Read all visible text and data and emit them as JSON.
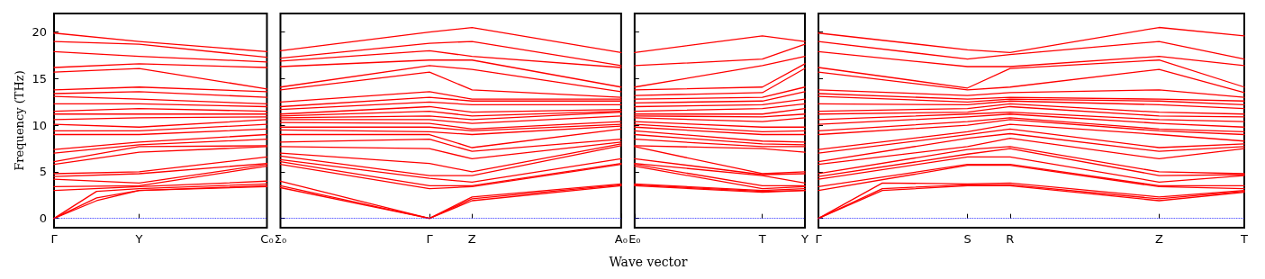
{
  "chart_data": [
    {
      "type": "line",
      "ylabel": "Frequency (THz)",
      "categories": [
        "Γ",
        null,
        null,
        null,
        "Y",
        null,
        null,
        null,
        null,
        null,
        "C₀"
      ],
      "ylim": [
        -1,
        22
      ],
      "yticks": [
        0,
        5,
        10,
        15,
        20
      ],
      "line_style": "solid",
      "marker": "none",
      "ref_lines": [
        {
          "axis": "y",
          "value": 0,
          "label": null,
          "color": "#0000ff",
          "line_style": "dotted"
        }
      ],
      "series": [
        {
          "color": "#ff0000",
          "values": [
            0,
            null,
            2.2,
            null,
            3.0,
            null,
            null,
            null,
            null,
            null,
            3.4
          ]
        },
        {
          "color": "#ff0000",
          "values": [
            0,
            null,
            1.9,
            null,
            3.0,
            null,
            null,
            null,
            null,
            null,
            3.5
          ]
        },
        {
          "color": "#ff0000",
          "values": [
            0,
            null,
            2.9,
            null,
            3.2,
            null,
            null,
            null,
            null,
            null,
            3.7
          ]
        },
        {
          "color": "#ff0000",
          "values": [
            3.0,
            null,
            null,
            null,
            3.4,
            null,
            null,
            null,
            null,
            null,
            4.0
          ]
        },
        {
          "color": "#ff0000",
          "values": [
            3.4,
            null,
            null,
            null,
            3.5,
            null,
            null,
            null,
            null,
            null,
            5.6
          ]
        },
        {
          "color": "#ff0000",
          "values": [
            4.2,
            null,
            null,
            null,
            3.8,
            null,
            null,
            null,
            null,
            null,
            5.8
          ]
        },
        {
          "color": "#ff0000",
          "values": [
            4.5,
            null,
            null,
            null,
            4.8,
            null,
            null,
            null,
            null,
            null,
            5.9
          ]
        },
        {
          "color": "#ff0000",
          "values": [
            4.8,
            null,
            null,
            null,
            5.0,
            null,
            null,
            null,
            null,
            null,
            6.6
          ]
        },
        {
          "color": "#ff0000",
          "values": [
            5.8,
            null,
            null,
            null,
            7.1,
            null,
            null,
            null,
            null,
            null,
            7.7
          ]
        },
        {
          "color": "#ff0000",
          "values": [
            6.1,
            null,
            null,
            null,
            7.7,
            null,
            null,
            null,
            null,
            null,
            7.8
          ]
        },
        {
          "color": "#ff0000",
          "values": [
            7.0,
            null,
            null,
            null,
            7.9,
            null,
            null,
            null,
            null,
            null,
            8.5
          ]
        },
        {
          "color": "#ff0000",
          "values": [
            7.4,
            null,
            null,
            null,
            8.2,
            null,
            null,
            null,
            null,
            null,
            9.0
          ]
        },
        {
          "color": "#ff0000",
          "values": [
            9.0,
            null,
            null,
            null,
            9.0,
            null,
            null,
            null,
            null,
            null,
            9.6
          ]
        },
        {
          "color": "#ff0000",
          "values": [
            9.4,
            null,
            null,
            null,
            9.4,
            null,
            null,
            null,
            null,
            null,
            10.1
          ]
        },
        {
          "color": "#ff0000",
          "values": [
            10.1,
            null,
            null,
            null,
            9.8,
            null,
            null,
            null,
            null,
            null,
            10.6
          ]
        },
        {
          "color": "#ff0000",
          "values": [
            10.6,
            null,
            null,
            null,
            10.8,
            null,
            null,
            null,
            null,
            null,
            10.9
          ]
        },
        {
          "color": "#ff0000",
          "values": [
            11.2,
            null,
            null,
            null,
            11.2,
            null,
            null,
            null,
            null,
            null,
            11.2
          ]
        },
        {
          "color": "#ff0000",
          "values": [
            11.5,
            null,
            null,
            null,
            11.8,
            null,
            null,
            null,
            null,
            null,
            11.5
          ]
        },
        {
          "color": "#ff0000",
          "values": [
            12.3,
            null,
            null,
            null,
            12.3,
            null,
            null,
            null,
            null,
            null,
            12.0
          ]
        },
        {
          "color": "#ff0000",
          "values": [
            13.1,
            null,
            null,
            null,
            12.8,
            null,
            null,
            null,
            null,
            null,
            12.3
          ]
        },
        {
          "color": "#ff0000",
          "values": [
            13.4,
            null,
            null,
            null,
            13.6,
            null,
            null,
            null,
            null,
            null,
            13.0
          ]
        },
        {
          "color": "#ff0000",
          "values": [
            13.8,
            null,
            null,
            null,
            14.1,
            null,
            null,
            null,
            null,
            null,
            13.6
          ]
        },
        {
          "color": "#ff0000",
          "values": [
            15.7,
            null,
            null,
            null,
            16.1,
            null,
            null,
            null,
            null,
            null,
            13.9
          ]
        },
        {
          "color": "#ff0000",
          "values": [
            16.2,
            null,
            null,
            null,
            16.6,
            null,
            null,
            null,
            null,
            null,
            16.2
          ]
        },
        {
          "color": "#ff0000",
          "values": [
            17.9,
            null,
            null,
            null,
            17.4,
            null,
            null,
            null,
            null,
            null,
            16.8
          ]
        },
        {
          "color": "#ff0000",
          "values": [
            19.0,
            null,
            null,
            null,
            18.7,
            null,
            null,
            null,
            null,
            null,
            17.3
          ]
        },
        {
          "color": "#ff0000",
          "values": [
            19.9,
            null,
            null,
            null,
            19.0,
            null,
            null,
            null,
            null,
            null,
            17.9
          ]
        }
      ]
    },
    {
      "type": "line",
      "categories": [
        "Σ₀",
        null,
        null,
        null,
        null,
        null,
        null,
        "Γ",
        null,
        "Z",
        null,
        null,
        null,
        null,
        null,
        null,
        "A₀"
      ],
      "ylim": [
        -1,
        22
      ],
      "yticks": [
        0,
        5,
        10,
        15,
        20
      ],
      "tick_labels": "x",
      "line_style": "solid",
      "marker": "none",
      "ref_lines": [
        {
          "axis": "y",
          "value": 0,
          "label": null,
          "color": "#0000ff",
          "line_style": "dotted"
        }
      ],
      "series": [
        {
          "color": "#ff0000",
          "values": [
            3.3,
            null,
            null,
            null,
            null,
            null,
            null,
            0,
            null,
            1.9,
            null,
            null,
            null,
            null,
            null,
            null,
            3.5
          ]
        },
        {
          "color": "#ff0000",
          "values": [
            3.5,
            null,
            null,
            null,
            null,
            null,
            null,
            0,
            null,
            2.1,
            null,
            null,
            null,
            null,
            null,
            null,
            3.6
          ]
        },
        {
          "color": "#ff0000",
          "values": [
            4.0,
            null,
            null,
            null,
            null,
            null,
            null,
            0,
            null,
            2.3,
            null,
            null,
            null,
            null,
            null,
            null,
            3.7
          ]
        },
        {
          "color": "#ff0000",
          "values": [
            5.8,
            null,
            null,
            null,
            null,
            null,
            null,
            3.2,
            null,
            3.4,
            null,
            null,
            null,
            null,
            null,
            null,
            5.8
          ]
        },
        {
          "color": "#ff0000",
          "values": [
            6.1,
            null,
            null,
            null,
            null,
            null,
            null,
            3.5,
            null,
            3.5,
            null,
            null,
            null,
            null,
            null,
            null,
            5.9
          ]
        },
        {
          "color": "#ff0000",
          "values": [
            6.3,
            null,
            null,
            null,
            null,
            null,
            null,
            4.3,
            null,
            3.9,
            null,
            null,
            null,
            null,
            null,
            null,
            6.4
          ]
        },
        {
          "color": "#ff0000",
          "values": [
            6.7,
            null,
            null,
            null,
            null,
            null,
            null,
            4.6,
            null,
            4.6,
            null,
            null,
            null,
            null,
            null,
            null,
            7.8
          ]
        },
        {
          "color": "#ff0000",
          "values": [
            7.0,
            null,
            null,
            null,
            null,
            null,
            null,
            5.9,
            null,
            5.0,
            null,
            null,
            null,
            null,
            null,
            null,
            8.0
          ]
        },
        {
          "color": "#ff0000",
          "values": [
            7.7,
            null,
            null,
            null,
            null,
            null,
            null,
            7.5,
            null,
            6.4,
            null,
            null,
            null,
            null,
            null,
            null,
            8.2
          ]
        },
        {
          "color": "#ff0000",
          "values": [
            8.2,
            null,
            null,
            null,
            null,
            null,
            null,
            8.5,
            null,
            7.2,
            null,
            null,
            null,
            null,
            null,
            null,
            8.5
          ]
        },
        {
          "color": "#ff0000",
          "values": [
            9.0,
            null,
            null,
            null,
            null,
            null,
            null,
            9.0,
            null,
            7.6,
            null,
            null,
            null,
            null,
            null,
            null,
            9.6
          ]
        },
        {
          "color": "#ff0000",
          "values": [
            9.5,
            null,
            null,
            null,
            null,
            null,
            null,
            9.3,
            null,
            9.0,
            null,
            null,
            null,
            null,
            null,
            null,
            9.9
          ]
        },
        {
          "color": "#ff0000",
          "values": [
            9.8,
            null,
            null,
            null,
            null,
            null,
            null,
            9.8,
            null,
            9.4,
            null,
            null,
            null,
            null,
            null,
            null,
            10.1
          ]
        },
        {
          "color": "#ff0000",
          "values": [
            10.3,
            null,
            null,
            null,
            null,
            null,
            null,
            10.2,
            null,
            9.6,
            null,
            null,
            null,
            null,
            null,
            null,
            10.4
          ]
        },
        {
          "color": "#ff0000",
          "values": [
            10.6,
            null,
            null,
            null,
            null,
            null,
            null,
            10.6,
            null,
            10.2,
            null,
            null,
            null,
            null,
            null,
            null,
            11.0
          ]
        },
        {
          "color": "#ff0000",
          "values": [
            10.8,
            null,
            null,
            null,
            null,
            null,
            null,
            11.0,
            null,
            10.6,
            null,
            null,
            null,
            null,
            null,
            null,
            11.4
          ]
        },
        {
          "color": "#ff0000",
          "values": [
            11.0,
            null,
            null,
            null,
            null,
            null,
            null,
            11.5,
            null,
            11.0,
            null,
            null,
            null,
            null,
            null,
            null,
            11.5
          ]
        },
        {
          "color": "#ff0000",
          "values": [
            11.2,
            null,
            null,
            null,
            null,
            null,
            null,
            12.0,
            null,
            11.4,
            null,
            null,
            null,
            null,
            null,
            null,
            11.7
          ]
        },
        {
          "color": "#ff0000",
          "values": [
            11.7,
            null,
            null,
            null,
            null,
            null,
            null,
            12.5,
            null,
            12.2,
            null,
            null,
            null,
            null,
            null,
            null,
            12.2
          ]
        },
        {
          "color": "#ff0000",
          "values": [
            12.0,
            null,
            null,
            null,
            null,
            null,
            null,
            13.0,
            null,
            12.6,
            null,
            null,
            null,
            null,
            null,
            null,
            12.6
          ]
        },
        {
          "color": "#ff0000",
          "values": [
            12.5,
            null,
            null,
            null,
            null,
            null,
            null,
            13.6,
            null,
            12.8,
            null,
            null,
            null,
            null,
            null,
            null,
            12.8
          ]
        },
        {
          "color": "#ff0000",
          "values": [
            13.8,
            null,
            null,
            null,
            null,
            null,
            null,
            15.7,
            null,
            13.8,
            null,
            null,
            null,
            null,
            null,
            null,
            13.0
          ]
        },
        {
          "color": "#ff0000",
          "values": [
            14.1,
            null,
            null,
            null,
            null,
            null,
            null,
            16.4,
            null,
            16.0,
            null,
            null,
            null,
            null,
            null,
            null,
            13.6
          ]
        },
        {
          "color": "#ff0000",
          "values": [
            16.3,
            null,
            null,
            null,
            null,
            null,
            null,
            17.0,
            null,
            17.0,
            null,
            null,
            null,
            null,
            null,
            null,
            14.1
          ]
        },
        {
          "color": "#ff0000",
          "values": [
            16.9,
            null,
            null,
            null,
            null,
            null,
            null,
            18.0,
            null,
            17.4,
            null,
            null,
            null,
            null,
            null,
            null,
            16.2
          ]
        },
        {
          "color": "#ff0000",
          "values": [
            17.2,
            null,
            null,
            null,
            null,
            null,
            null,
            18.8,
            null,
            19.0,
            null,
            null,
            null,
            null,
            null,
            null,
            16.4
          ]
        },
        {
          "color": "#ff0000",
          "values": [
            18.0,
            null,
            null,
            null,
            null,
            null,
            null,
            20.0,
            null,
            20.5,
            null,
            null,
            null,
            null,
            null,
            null,
            17.8
          ]
        }
      ]
    },
    {
      "type": "line",
      "xlabel": "Wave vector",
      "categories": [
        "E₀",
        null,
        null,
        null,
        null,
        null,
        "T",
        null,
        "Y"
      ],
      "ylim": [
        -1,
        22
      ],
      "yticks": [
        0,
        5,
        10,
        15,
        20
      ],
      "tick_labels": "x",
      "line_style": "solid",
      "marker": "none",
      "ref_lines": [
        {
          "axis": "y",
          "value": 0,
          "label": null,
          "color": "#0000ff",
          "line_style": "dotted"
        }
      ],
      "series": [
        {
          "color": "#ff0000",
          "values": [
            3.5,
            null,
            null,
            null,
            null,
            null,
            2.8,
            null,
            3.0
          ]
        },
        {
          "color": "#ff0000",
          "values": [
            3.6,
            null,
            null,
            null,
            null,
            null,
            2.9,
            null,
            3.0
          ]
        },
        {
          "color": "#ff0000",
          "values": [
            3.7,
            null,
            null,
            null,
            null,
            null,
            3.0,
            null,
            3.2
          ]
        },
        {
          "color": "#ff0000",
          "values": [
            5.6,
            null,
            null,
            null,
            null,
            null,
            3.2,
            null,
            3.4
          ]
        },
        {
          "color": "#ff0000",
          "values": [
            5.8,
            null,
            null,
            null,
            null,
            null,
            3.5,
            null,
            3.5
          ]
        },
        {
          "color": "#ff0000",
          "values": [
            5.9,
            null,
            null,
            null,
            null,
            null,
            4.6,
            null,
            3.8
          ]
        },
        {
          "color": "#ff0000",
          "values": [
            6.4,
            null,
            null,
            null,
            null,
            null,
            4.7,
            null,
            4.8
          ]
        },
        {
          "color": "#ff0000",
          "values": [
            7.7,
            null,
            null,
            null,
            null,
            null,
            4.8,
            null,
            5.0
          ]
        },
        {
          "color": "#ff0000",
          "values": [
            7.8,
            null,
            null,
            null,
            null,
            null,
            7.5,
            null,
            7.1
          ]
        },
        {
          "color": "#ff0000",
          "values": [
            8.5,
            null,
            null,
            null,
            null,
            null,
            7.7,
            null,
            7.7
          ]
        },
        {
          "color": "#ff0000",
          "values": [
            9.0,
            null,
            null,
            null,
            null,
            null,
            8.0,
            null,
            7.9
          ]
        },
        {
          "color": "#ff0000",
          "values": [
            9.4,
            null,
            null,
            null,
            null,
            null,
            8.3,
            null,
            8.2
          ]
        },
        {
          "color": "#ff0000",
          "values": [
            9.8,
            null,
            null,
            null,
            null,
            null,
            9.0,
            null,
            9.0
          ]
        },
        {
          "color": "#ff0000",
          "values": [
            10.1,
            null,
            null,
            null,
            null,
            null,
            9.3,
            null,
            9.4
          ]
        },
        {
          "color": "#ff0000",
          "values": [
            10.4,
            null,
            null,
            null,
            null,
            null,
            9.8,
            null,
            9.8
          ]
        },
        {
          "color": "#ff0000",
          "values": [
            10.8,
            null,
            null,
            null,
            null,
            null,
            10.4,
            null,
            10.8
          ]
        },
        {
          "color": "#ff0000",
          "values": [
            11.0,
            null,
            null,
            null,
            null,
            null,
            10.9,
            null,
            11.2
          ]
        },
        {
          "color": "#ff0000",
          "values": [
            11.2,
            null,
            null,
            null,
            null,
            null,
            11.2,
            null,
            11.8
          ]
        },
        {
          "color": "#ff0000",
          "values": [
            11.5,
            null,
            null,
            null,
            null,
            null,
            11.8,
            null,
            12.3
          ]
        },
        {
          "color": "#ff0000",
          "values": [
            12.0,
            null,
            null,
            null,
            null,
            null,
            12.2,
            null,
            12.8
          ]
        },
        {
          "color": "#ff0000",
          "values": [
            12.4,
            null,
            null,
            null,
            null,
            null,
            12.6,
            null,
            13.6
          ]
        },
        {
          "color": "#ff0000",
          "values": [
            12.8,
            null,
            null,
            null,
            null,
            null,
            13.0,
            null,
            14.1
          ]
        },
        {
          "color": "#ff0000",
          "values": [
            13.2,
            null,
            null,
            null,
            null,
            null,
            13.5,
            null,
            16.1
          ]
        },
        {
          "color": "#ff0000",
          "values": [
            13.8,
            null,
            null,
            null,
            null,
            null,
            14.1,
            null,
            16.6
          ]
        },
        {
          "color": "#ff0000",
          "values": [
            14.1,
            null,
            null,
            null,
            null,
            null,
            16.4,
            null,
            17.4
          ]
        },
        {
          "color": "#ff0000",
          "values": [
            16.4,
            null,
            null,
            null,
            null,
            null,
            17.1,
            null,
            18.7
          ]
        },
        {
          "color": "#ff0000",
          "values": [
            17.8,
            null,
            null,
            null,
            null,
            null,
            19.6,
            null,
            19.0
          ]
        }
      ]
    },
    {
      "type": "line",
      "categories": [
        "Γ",
        null,
        null,
        null,
        null,
        null,
        null,
        "S",
        null,
        "R",
        null,
        null,
        null,
        null,
        null,
        null,
        "Z",
        null,
        null,
        null,
        "T"
      ],
      "ylim": [
        -1,
        22
      ],
      "yticks": [
        0,
        5,
        10,
        15,
        20
      ],
      "tick_labels": "x",
      "line_style": "solid",
      "marker": "none",
      "ref_lines": [
        {
          "axis": "y",
          "value": 0,
          "label": null,
          "color": "#0000ff",
          "line_style": "dotted"
        }
      ],
      "series": [
        {
          "color": "#ff0000",
          "values": [
            0,
            null,
            null,
            3.0,
            null,
            null,
            null,
            3.5,
            null,
            3.5,
            null,
            null,
            null,
            null,
            null,
            null,
            1.9,
            null,
            null,
            null,
            2.8
          ]
        },
        {
          "color": "#ff0000",
          "values": [
            0,
            null,
            null,
            3.2,
            null,
            null,
            null,
            3.6,
            null,
            3.6,
            null,
            null,
            null,
            null,
            null,
            null,
            2.1,
            null,
            null,
            null,
            2.9
          ]
        },
        {
          "color": "#ff0000",
          "values": [
            0,
            null,
            null,
            3.8,
            null,
            null,
            null,
            3.7,
            null,
            3.8,
            null,
            null,
            null,
            null,
            null,
            null,
            2.3,
            null,
            null,
            null,
            3.0
          ]
        },
        {
          "color": "#ff0000",
          "values": [
            3.0,
            null,
            null,
            null,
            null,
            null,
            null,
            5.7,
            null,
            5.7,
            null,
            null,
            null,
            null,
            null,
            null,
            3.4,
            null,
            null,
            null,
            3.2
          ]
        },
        {
          "color": "#ff0000",
          "values": [
            3.4,
            null,
            null,
            null,
            null,
            null,
            null,
            5.8,
            null,
            5.8,
            null,
            null,
            null,
            null,
            null,
            null,
            3.5,
            null,
            null,
            null,
            3.5
          ]
        },
        {
          "color": "#ff0000",
          "values": [
            4.2,
            null,
            null,
            null,
            null,
            null,
            null,
            6.6,
            null,
            6.6,
            null,
            null,
            null,
            null,
            null,
            null,
            3.9,
            null,
            null,
            null,
            4.6
          ]
        },
        {
          "color": "#ff0000",
          "values": [
            4.5,
            null,
            null,
            null,
            null,
            null,
            null,
            6.9,
            null,
            7.5,
            null,
            null,
            null,
            null,
            null,
            null,
            4.6,
            null,
            null,
            null,
            4.7
          ]
        },
        {
          "color": "#ff0000",
          "values": [
            4.8,
            null,
            null,
            null,
            null,
            null,
            null,
            7.4,
            null,
            7.7,
            null,
            null,
            null,
            null,
            null,
            null,
            5.0,
            null,
            null,
            null,
            4.8
          ]
        },
        {
          "color": "#ff0000",
          "values": [
            5.8,
            null,
            null,
            null,
            null,
            null,
            null,
            7.7,
            null,
            8.6,
            null,
            null,
            null,
            null,
            null,
            null,
            6.4,
            null,
            null,
            null,
            7.5
          ]
        },
        {
          "color": "#ff0000",
          "values": [
            6.1,
            null,
            null,
            null,
            null,
            null,
            null,
            8.6,
            null,
            9.1,
            null,
            null,
            null,
            null,
            null,
            null,
            7.2,
            null,
            null,
            null,
            7.7
          ]
        },
        {
          "color": "#ff0000",
          "values": [
            7.0,
            null,
            null,
            null,
            null,
            null,
            null,
            9.0,
            null,
            9.6,
            null,
            null,
            null,
            null,
            null,
            null,
            7.6,
            null,
            null,
            null,
            8.0
          ]
        },
        {
          "color": "#ff0000",
          "values": [
            7.4,
            null,
            null,
            null,
            null,
            null,
            null,
            9.3,
            null,
            10.1,
            null,
            null,
            null,
            null,
            null,
            null,
            9.0,
            null,
            null,
            null,
            8.3
          ]
        },
        {
          "color": "#ff0000",
          "values": [
            9.0,
            null,
            null,
            null,
            null,
            null,
            null,
            10.0,
            null,
            10.6,
            null,
            null,
            null,
            null,
            null,
            null,
            9.4,
            null,
            null,
            null,
            9.0
          ]
        },
        {
          "color": "#ff0000",
          "values": [
            9.4,
            null,
            null,
            null,
            null,
            null,
            null,
            10.4,
            null,
            10.8,
            null,
            null,
            null,
            null,
            null,
            null,
            9.6,
            null,
            null,
            null,
            9.3
          ]
        },
        {
          "color": "#ff0000",
          "values": [
            10.1,
            null,
            null,
            null,
            null,
            null,
            null,
            10.9,
            null,
            11.2,
            null,
            null,
            null,
            null,
            null,
            null,
            10.2,
            null,
            null,
            null,
            9.8
          ]
        },
        {
          "color": "#ff0000",
          "values": [
            10.6,
            null,
            null,
            null,
            null,
            null,
            null,
            11.2,
            null,
            11.4,
            null,
            null,
            null,
            null,
            null,
            null,
            10.6,
            null,
            null,
            null,
            10.4
          ]
        },
        {
          "color": "#ff0000",
          "values": [
            11.2,
            null,
            null,
            null,
            null,
            null,
            null,
            11.4,
            null,
            12.0,
            null,
            null,
            null,
            null,
            null,
            null,
            11.0,
            null,
            null,
            null,
            10.9
          ]
        },
        {
          "color": "#ff0000",
          "values": [
            11.5,
            null,
            null,
            null,
            null,
            null,
            null,
            11.8,
            null,
            12.3,
            null,
            null,
            null,
            null,
            null,
            null,
            11.4,
            null,
            null,
            null,
            11.2
          ]
        },
        {
          "color": "#ff0000",
          "values": [
            12.3,
            null,
            null,
            null,
            null,
            null,
            null,
            12.2,
            null,
            12.6,
            null,
            null,
            null,
            null,
            null,
            null,
            12.2,
            null,
            null,
            null,
            11.8
          ]
        },
        {
          "color": "#ff0000",
          "values": [
            13.1,
            null,
            null,
            null,
            null,
            null,
            null,
            12.5,
            null,
            12.8,
            null,
            null,
            null,
            null,
            null,
            null,
            12.6,
            null,
            null,
            null,
            12.2
          ]
        },
        {
          "color": "#ff0000",
          "values": [
            13.4,
            null,
            null,
            null,
            null,
            null,
            null,
            12.8,
            null,
            13.0,
            null,
            null,
            null,
            null,
            null,
            null,
            12.8,
            null,
            null,
            null,
            12.6
          ]
        },
        {
          "color": "#ff0000",
          "values": [
            13.8,
            null,
            null,
            null,
            null,
            null,
            null,
            13.2,
            null,
            13.5,
            null,
            null,
            null,
            null,
            null,
            null,
            13.8,
            null,
            null,
            null,
            13.0
          ]
        },
        {
          "color": "#ff0000",
          "values": [
            15.7,
            null,
            null,
            null,
            null,
            null,
            null,
            13.8,
            null,
            14.1,
            null,
            null,
            null,
            null,
            null,
            null,
            16.0,
            null,
            null,
            null,
            13.5
          ]
        },
        {
          "color": "#ff0000",
          "values": [
            16.2,
            null,
            null,
            null,
            null,
            null,
            null,
            14.0,
            null,
            16.1,
            null,
            null,
            null,
            null,
            null,
            null,
            17.0,
            null,
            null,
            null,
            14.1
          ]
        },
        {
          "color": "#ff0000",
          "values": [
            17.9,
            null,
            null,
            null,
            null,
            null,
            null,
            16.3,
            null,
            16.3,
            null,
            null,
            null,
            null,
            null,
            null,
            17.4,
            null,
            null,
            null,
            16.4
          ]
        },
        {
          "color": "#ff0000",
          "values": [
            19.0,
            null,
            null,
            null,
            null,
            null,
            null,
            17.1,
            null,
            17.6,
            null,
            null,
            null,
            null,
            null,
            null,
            19.0,
            null,
            null,
            null,
            17.1
          ]
        },
        {
          "color": "#ff0000",
          "values": [
            19.9,
            null,
            null,
            null,
            null,
            null,
            null,
            18.1,
            null,
            17.8,
            null,
            null,
            null,
            null,
            null,
            null,
            20.5,
            null,
            null,
            null,
            19.6
          ]
        }
      ]
    }
  ]
}
